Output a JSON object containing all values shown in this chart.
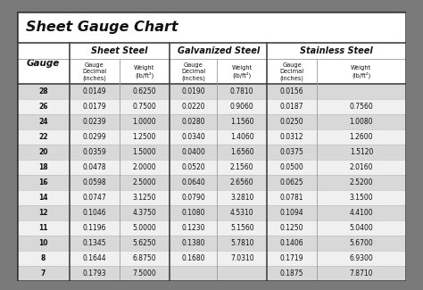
{
  "title": "Sheet Gauge Chart",
  "color_outer_bg": "#7a7a7a",
  "color_inner_bg": "#ffffff",
  "color_border": "#333333",
  "color_row_odd": "#d8d8d8",
  "color_row_even": "#f0f0f0",
  "color_header_bg": "#ffffff",
  "color_title_bg": "#ffffff",
  "color_text": "#111111",
  "color_divider_major": "#444444",
  "color_divider_minor": "#999999",
  "gauges": [
    28,
    26,
    24,
    22,
    20,
    18,
    16,
    14,
    12,
    11,
    10,
    8,
    7
  ],
  "sheet_steel": {
    "decimal": [
      "0.0149",
      "0.0179",
      "0.0239",
      "0.0299",
      "0.0359",
      "0.0478",
      "0.0598",
      "0.0747",
      "0.1046",
      "0.1196",
      "0.1345",
      "0.1644",
      "0.1793"
    ],
    "weight": [
      "0.6250",
      "0.7500",
      "1.0000",
      "1.2500",
      "1.5000",
      "2.0000",
      "2.5000",
      "3.1250",
      "4.3750",
      "5.0000",
      "5.6250",
      "6.8750",
      "7.5000"
    ]
  },
  "galvanized_steel": {
    "decimal": [
      "0.0190",
      "0.0220",
      "0.0280",
      "0.0340",
      "0.0400",
      "0.0520",
      "0.0640",
      "0.0790",
      "0.1080",
      "0.1230",
      "0.1380",
      "0.1680",
      ""
    ],
    "weight": [
      "0.7810",
      "0.9060",
      "1.1560",
      "1.4060",
      "1.6560",
      "2.1560",
      "2.6560",
      "3.2810",
      "4.5310",
      "5.1560",
      "5.7810",
      "7.0310",
      ""
    ]
  },
  "stainless_steel": {
    "decimal": [
      "0.0156",
      "0.0187",
      "0.0250",
      "0.0312",
      "0.0375",
      "0.0500",
      "0.0625",
      "0.0781",
      "0.1094",
      "0.1250",
      "0.1406",
      "0.1719",
      "0.1875"
    ],
    "weight": [
      "",
      "0.7560",
      "1.0080",
      "1.2600",
      "1.5120",
      "2.0160",
      "2.5200",
      "3.1500",
      "4.4100",
      "5.0400",
      "5.6700",
      "6.9300",
      "7.8710"
    ]
  },
  "section_headers": [
    "Sheet Steel",
    "Galvanized Steel",
    "Stainless Steel"
  ],
  "gauge_col_header": "Gauge",
  "sub_col1": "Gauge\nDecimal\n(inches)",
  "sub_col2": "Weight\n(lb/ft²)",
  "figsize": [
    4.74,
    3.25
  ],
  "dpi": 100
}
